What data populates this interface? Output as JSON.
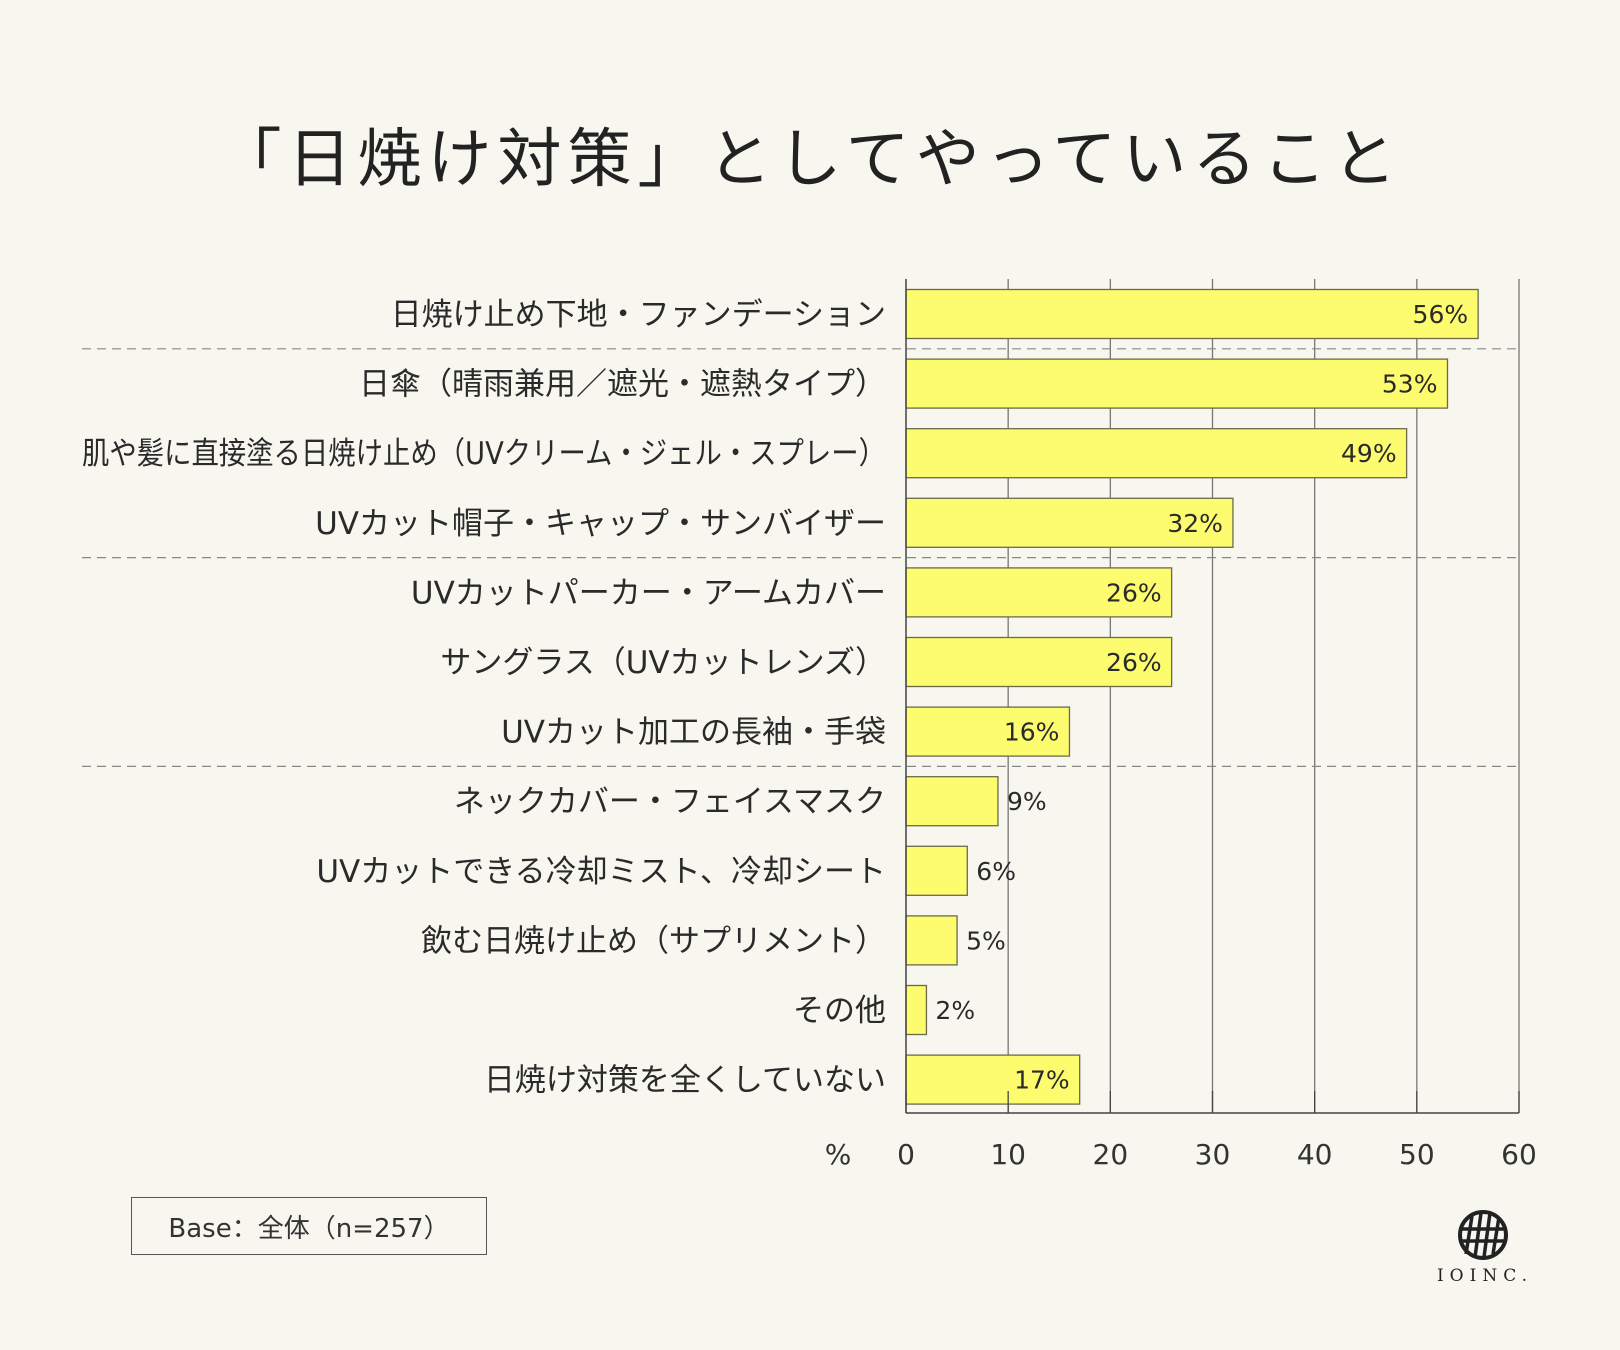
{
  "chart_data": {
    "type": "bar",
    "orientation": "horizontal",
    "title": "「日焼け対策」としてやっていること",
    "categories": [
      "日焼け止め下地・ファンデーション",
      "日傘（晴雨兼用／遮光・遮熱タイプ）",
      "肌や髪に直接塗る日焼け止め（UVクリーム・ジェル・スプレー）",
      "UVカット帽子・キャップ・サンバイザー",
      "UVカットパーカー・アームカバー",
      "サングラス（UVカットレンズ）",
      "UVカット加工の長袖・手袋",
      "ネックカバー・フェイスマスク",
      "UVカットできる冷却ミスト、冷却シート",
      "飲む日焼け止め（サプリメント）",
      "その他",
      "日焼け対策を全くしていない"
    ],
    "values": [
      56,
      53,
      49,
      32,
      26,
      26,
      16,
      9,
      6,
      5,
      2,
      17
    ],
    "value_labels": [
      "56%",
      "53%",
      "49%",
      "32%",
      "26%",
      "26%",
      "16%",
      "9%",
      "6%",
      "5%",
      "2%",
      "17%"
    ],
    "xlabel": "%",
    "xlim": [
      0,
      60
    ],
    "xticks": [
      "0",
      "10",
      "20",
      "30",
      "40",
      "50",
      "60"
    ],
    "grid": true,
    "group_separators_after": [
      0,
      3,
      6
    ],
    "bar_color": "#fdfb6e",
    "bar_edge_color": "#6b6b4a"
  },
  "footnote": "Base：全体（n=257）",
  "logo": {
    "text": "IOINC.",
    "icon": "hatched-circle-logo-icon"
  }
}
